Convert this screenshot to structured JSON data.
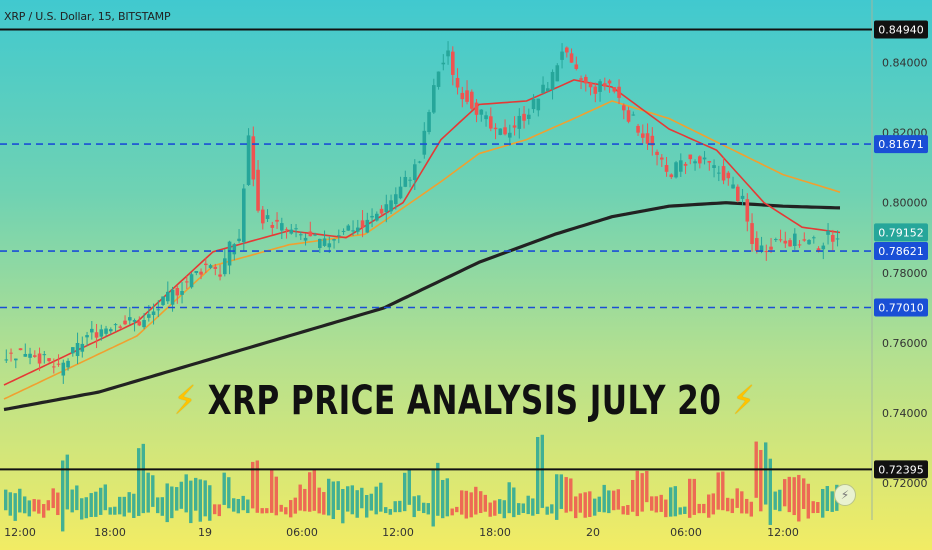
{
  "header": {
    "symbol": "XRP / U.S. Dollar, 15, BITSTAMP"
  },
  "banner": {
    "text": "XRP PRICE ANALYSIS JULY 20",
    "icon": "lightning-icon"
  },
  "colors": {
    "blue_line": "#1a4fd6",
    "black_line": "#111111",
    "up": "#26a69a",
    "down": "#ef5350",
    "ma_fast": "#e53935",
    "ma_slow": "#f0a030",
    "ma_long": "#222222"
  },
  "chart_data": {
    "type": "candlestick",
    "ylim": [
      0.7095,
      0.8578
    ],
    "y_ticks": [
      "0.84000",
      "0.82000",
      "0.80000",
      "0.78000",
      "0.76000",
      "0.74000",
      "0.72000"
    ],
    "x_ticks": [
      "12:00",
      "18:00",
      "19",
      "06:00",
      "12:00",
      "18:00",
      "20",
      "06:00",
      "12:00"
    ],
    "levels": [
      {
        "value": "0.84940",
        "style": "solid",
        "color": "#111111"
      },
      {
        "value": "0.81671",
        "style": "dashed",
        "color": "#1a4fd6"
      },
      {
        "value": "0.78621",
        "style": "dashed",
        "color": "#1a4fd6"
      },
      {
        "value": "0.77010",
        "style": "dashed",
        "color": "#1a4fd6"
      },
      {
        "value": "0.72395",
        "style": "solid",
        "color": "#111111"
      }
    ],
    "last_price": "0.79152",
    "price_path": [
      [
        0,
        0.756
      ],
      [
        3,
        0.758
      ],
      [
        6,
        0.752
      ],
      [
        9,
        0.762
      ],
      [
        12,
        0.766
      ],
      [
        15,
        0.766
      ],
      [
        18,
        0.774
      ],
      [
        21,
        0.781
      ],
      [
        22,
        0.783
      ],
      [
        23,
        0.78
      ],
      [
        24,
        0.787
      ],
      [
        25,
        0.79
      ],
      [
        26,
        0.818
      ],
      [
        27,
        0.797
      ],
      [
        28,
        0.795
      ],
      [
        30,
        0.792
      ],
      [
        32,
        0.79
      ],
      [
        34,
        0.788
      ],
      [
        36,
        0.793
      ],
      [
        38,
        0.793
      ],
      [
        40,
        0.798
      ],
      [
        42,
        0.804
      ],
      [
        44,
        0.812
      ],
      [
        45,
        0.826
      ],
      [
        46,
        0.838
      ],
      [
        47,
        0.842
      ],
      [
        48,
        0.833
      ],
      [
        50,
        0.827
      ],
      [
        52,
        0.819
      ],
      [
        54,
        0.822
      ],
      [
        56,
        0.828
      ],
      [
        58,
        0.836
      ],
      [
        59,
        0.844
      ],
      [
        60,
        0.838
      ],
      [
        62,
        0.832
      ],
      [
        64,
        0.834
      ],
      [
        66,
        0.825
      ],
      [
        68,
        0.818
      ],
      [
        70,
        0.808
      ],
      [
        72,
        0.812
      ],
      [
        74,
        0.811
      ],
      [
        76,
        0.808
      ],
      [
        78,
        0.8
      ],
      [
        79,
        0.788
      ],
      [
        80,
        0.787
      ],
      [
        82,
        0.79
      ],
      [
        84,
        0.789
      ],
      [
        86,
        0.788
      ],
      [
        87,
        0.79
      ],
      [
        88,
        0.7915
      ]
    ],
    "ma_fast": [
      [
        0,
        0.748
      ],
      [
        14,
        0.766
      ],
      [
        22,
        0.786
      ],
      [
        30,
        0.792
      ],
      [
        36,
        0.79
      ],
      [
        42,
        0.8
      ],
      [
        46,
        0.818
      ],
      [
        50,
        0.828
      ],
      [
        55,
        0.829
      ],
      [
        60,
        0.835
      ],
      [
        64,
        0.833
      ],
      [
        70,
        0.821
      ],
      [
        75,
        0.815
      ],
      [
        80,
        0.8
      ],
      [
        84,
        0.793
      ],
      [
        88,
        0.7915
      ]
    ],
    "ma_slow": [
      [
        0,
        0.744
      ],
      [
        14,
        0.762
      ],
      [
        22,
        0.782
      ],
      [
        30,
        0.788
      ],
      [
        38,
        0.791
      ],
      [
        46,
        0.806
      ],
      [
        50,
        0.814
      ],
      [
        55,
        0.818
      ],
      [
        60,
        0.824
      ],
      [
        64,
        0.829
      ],
      [
        70,
        0.824
      ],
      [
        76,
        0.816
      ],
      [
        82,
        0.808
      ],
      [
        88,
        0.803
      ]
    ],
    "ma_long": [
      [
        0,
        0.741
      ],
      [
        10,
        0.746
      ],
      [
        20,
        0.754
      ],
      [
        30,
        0.762
      ],
      [
        40,
        0.77
      ],
      [
        50,
        0.783
      ],
      [
        58,
        0.791
      ],
      [
        64,
        0.796
      ],
      [
        70,
        0.799
      ],
      [
        76,
        0.8
      ],
      [
        82,
        0.799
      ],
      [
        88,
        0.7985
      ]
    ]
  }
}
